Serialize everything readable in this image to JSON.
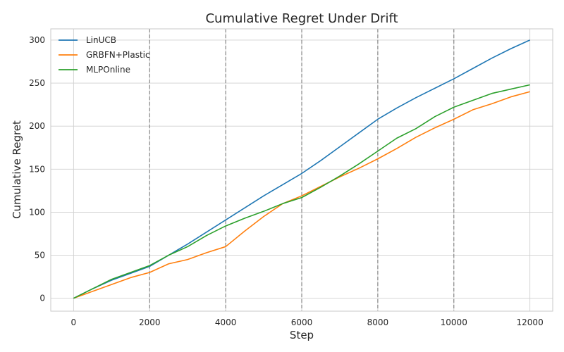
{
  "chart_data": {
    "type": "line",
    "title": "Cumulative Regret Under Drift",
    "xlabel": "Step",
    "ylabel": "Cumulative Regret",
    "xlim": [
      -600,
      12600
    ],
    "ylim": [
      -15,
      313
    ],
    "xticks": [
      0,
      2000,
      4000,
      6000,
      8000,
      10000,
      12000
    ],
    "xtick_labels": [
      "0",
      "2000",
      "4000",
      "6000",
      "8000",
      "10000",
      "12000"
    ],
    "yticks": [
      0,
      50,
      100,
      150,
      200,
      250,
      300
    ],
    "ytick_labels": [
      "0",
      "50",
      "100",
      "150",
      "200",
      "250",
      "300"
    ],
    "drift_points": [
      2000,
      4000,
      6000,
      8000,
      10000
    ],
    "grid": true,
    "legend_position": "top-left",
    "x": [
      0,
      500,
      1000,
      1500,
      2000,
      2500,
      3000,
      3500,
      4000,
      4500,
      5000,
      5500,
      6000,
      6500,
      7000,
      7500,
      8000,
      8500,
      9000,
      9500,
      10000,
      10500,
      11000,
      11500,
      12000
    ],
    "series": [
      {
        "name": "LinUCB",
        "color": "#1f77b4",
        "values": [
          0,
          11,
          21,
          29,
          37,
          50,
          63,
          77,
          91,
          105,
          119,
          132,
          145,
          160,
          176,
          192,
          208,
          221,
          233,
          244,
          255,
          267,
          279,
          290,
          300
        ]
      },
      {
        "name": "GRBFN+Plastic",
        "color": "#ff7f0e",
        "values": [
          0,
          8,
          16,
          24,
          30,
          40,
          45,
          53,
          60,
          78,
          95,
          110,
          119,
          130,
          141,
          151,
          162,
          174,
          187,
          198,
          208,
          219,
          226,
          234,
          240
        ]
      },
      {
        "name": "MLPOnline",
        "color": "#2ca02c",
        "values": [
          0,
          11,
          22,
          30,
          38,
          50,
          60,
          73,
          84,
          93,
          101,
          110,
          117,
          129,
          142,
          156,
          171,
          186,
          197,
          211,
          222,
          230,
          238,
          243,
          248
        ]
      }
    ]
  }
}
